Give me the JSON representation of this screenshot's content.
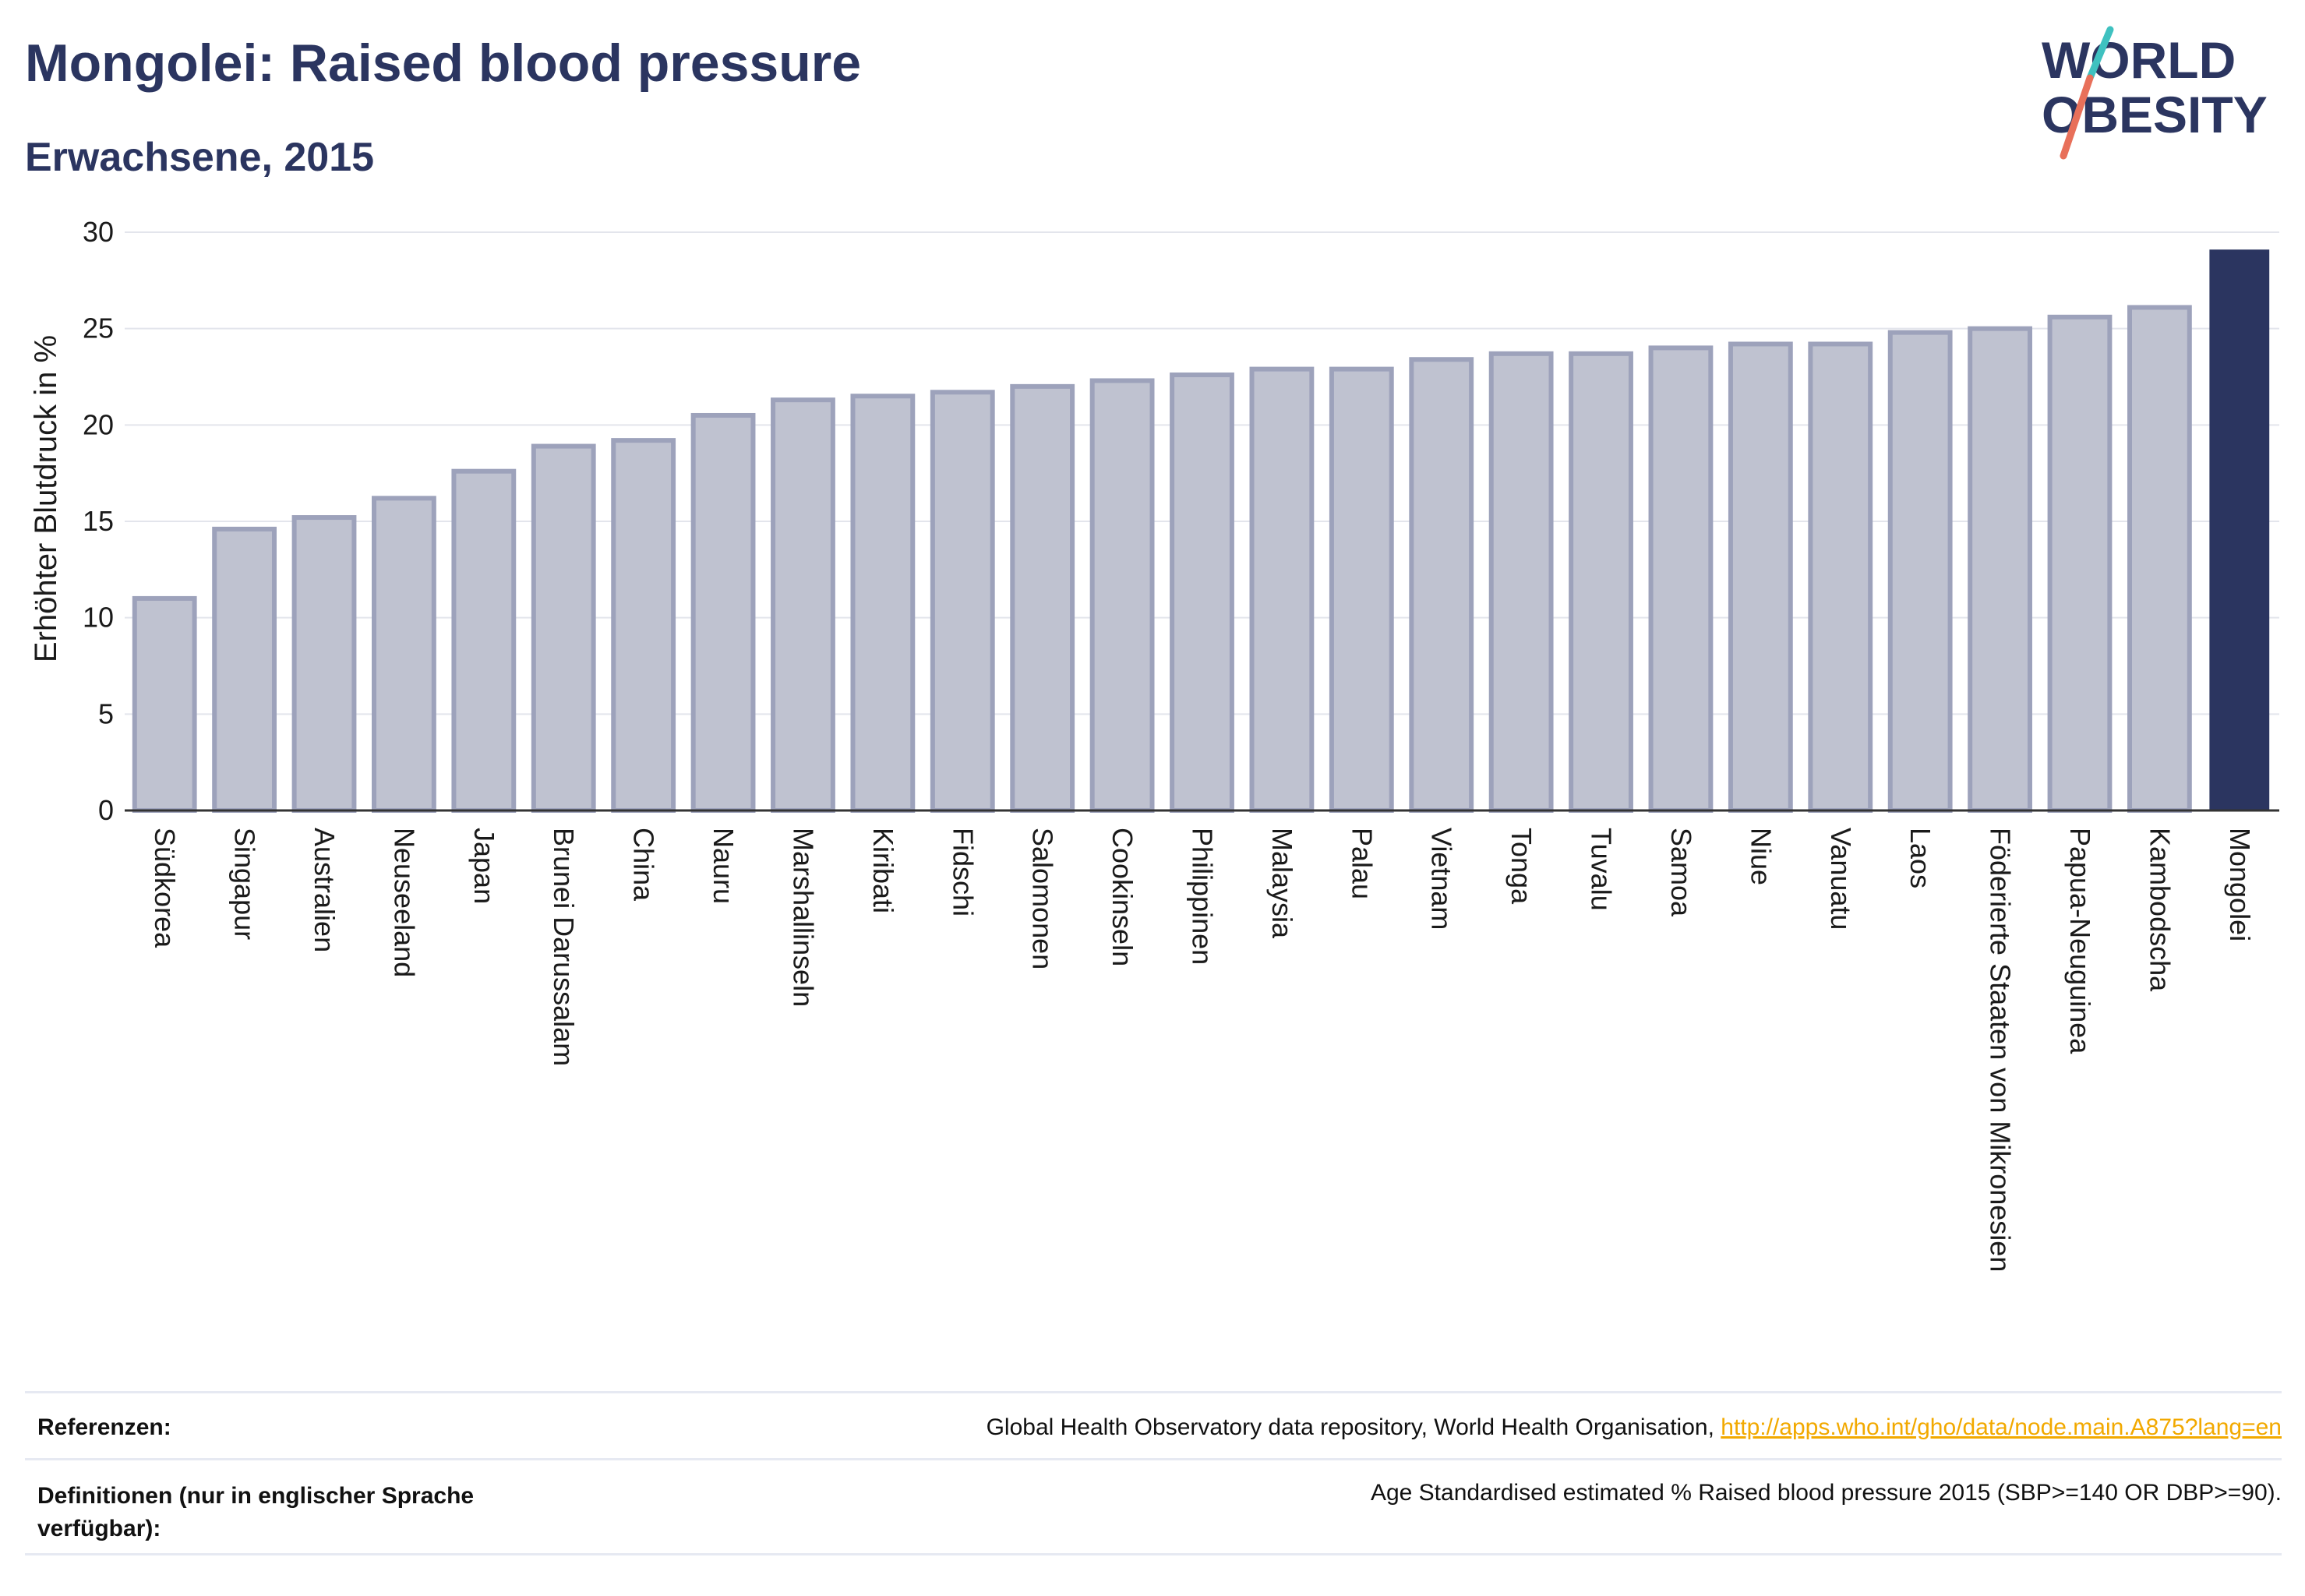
{
  "header": {
    "title": "Mongolei: Raised blood pressure",
    "subtitle": "Erwachsene, 2015"
  },
  "logo": {
    "line1": "WORLD",
    "line2": "OBESITY"
  },
  "chart_data": {
    "type": "bar",
    "ylabel": "Erhöhter Blutdruck in %",
    "xlabel": "",
    "ylim": [
      0,
      30
    ],
    "yticks": [
      "0",
      "5",
      "10",
      "15",
      "20",
      "25",
      "30"
    ],
    "grid": true,
    "categories": [
      "Südkorea",
      "Singapur",
      "Australien",
      "Neuseeland",
      "Japan",
      "Brunei Darussalam",
      "China",
      "Nauru",
      "Marshallinseln",
      "Kiribati",
      "Fidschi",
      "Salomonen",
      "Cookinseln",
      "Philippinen",
      "Malaysia",
      "Palau",
      "Vietnam",
      "Tonga",
      "Tuvalu",
      "Samoa",
      "Niue",
      "Vanuatu",
      "Laos",
      "Föderierte Staaten von Mikronesien",
      "Papua-Neuguinea",
      "Kambodscha",
      "Mongolei"
    ],
    "values": [
      11.0,
      14.6,
      15.2,
      16.2,
      17.6,
      18.9,
      19.2,
      20.5,
      21.3,
      21.5,
      21.7,
      22.0,
      22.3,
      22.6,
      22.9,
      22.9,
      23.4,
      23.7,
      23.7,
      24.0,
      24.2,
      24.2,
      24.8,
      25.0,
      25.6,
      26.1,
      29.1
    ],
    "highlight": "Mongolei",
    "colors": {
      "bar": "#bfc2d0",
      "bar_edge": "#9da2bb",
      "highlight": "#2b3560"
    }
  },
  "footer": {
    "references_label": "Referenzen:",
    "references_text": "Global Health Observatory data repository, World Health Organisation,",
    "references_link": "http://apps.who.int/gho/data/node.main.A875?lang=en",
    "definitions_label": "Definitionen (nur in englischer Sprache verfügbar):",
    "definitions_text": "Age Standardised estimated % Raised blood pressure 2015 (SBP>=140 OR DBP>=90)."
  }
}
